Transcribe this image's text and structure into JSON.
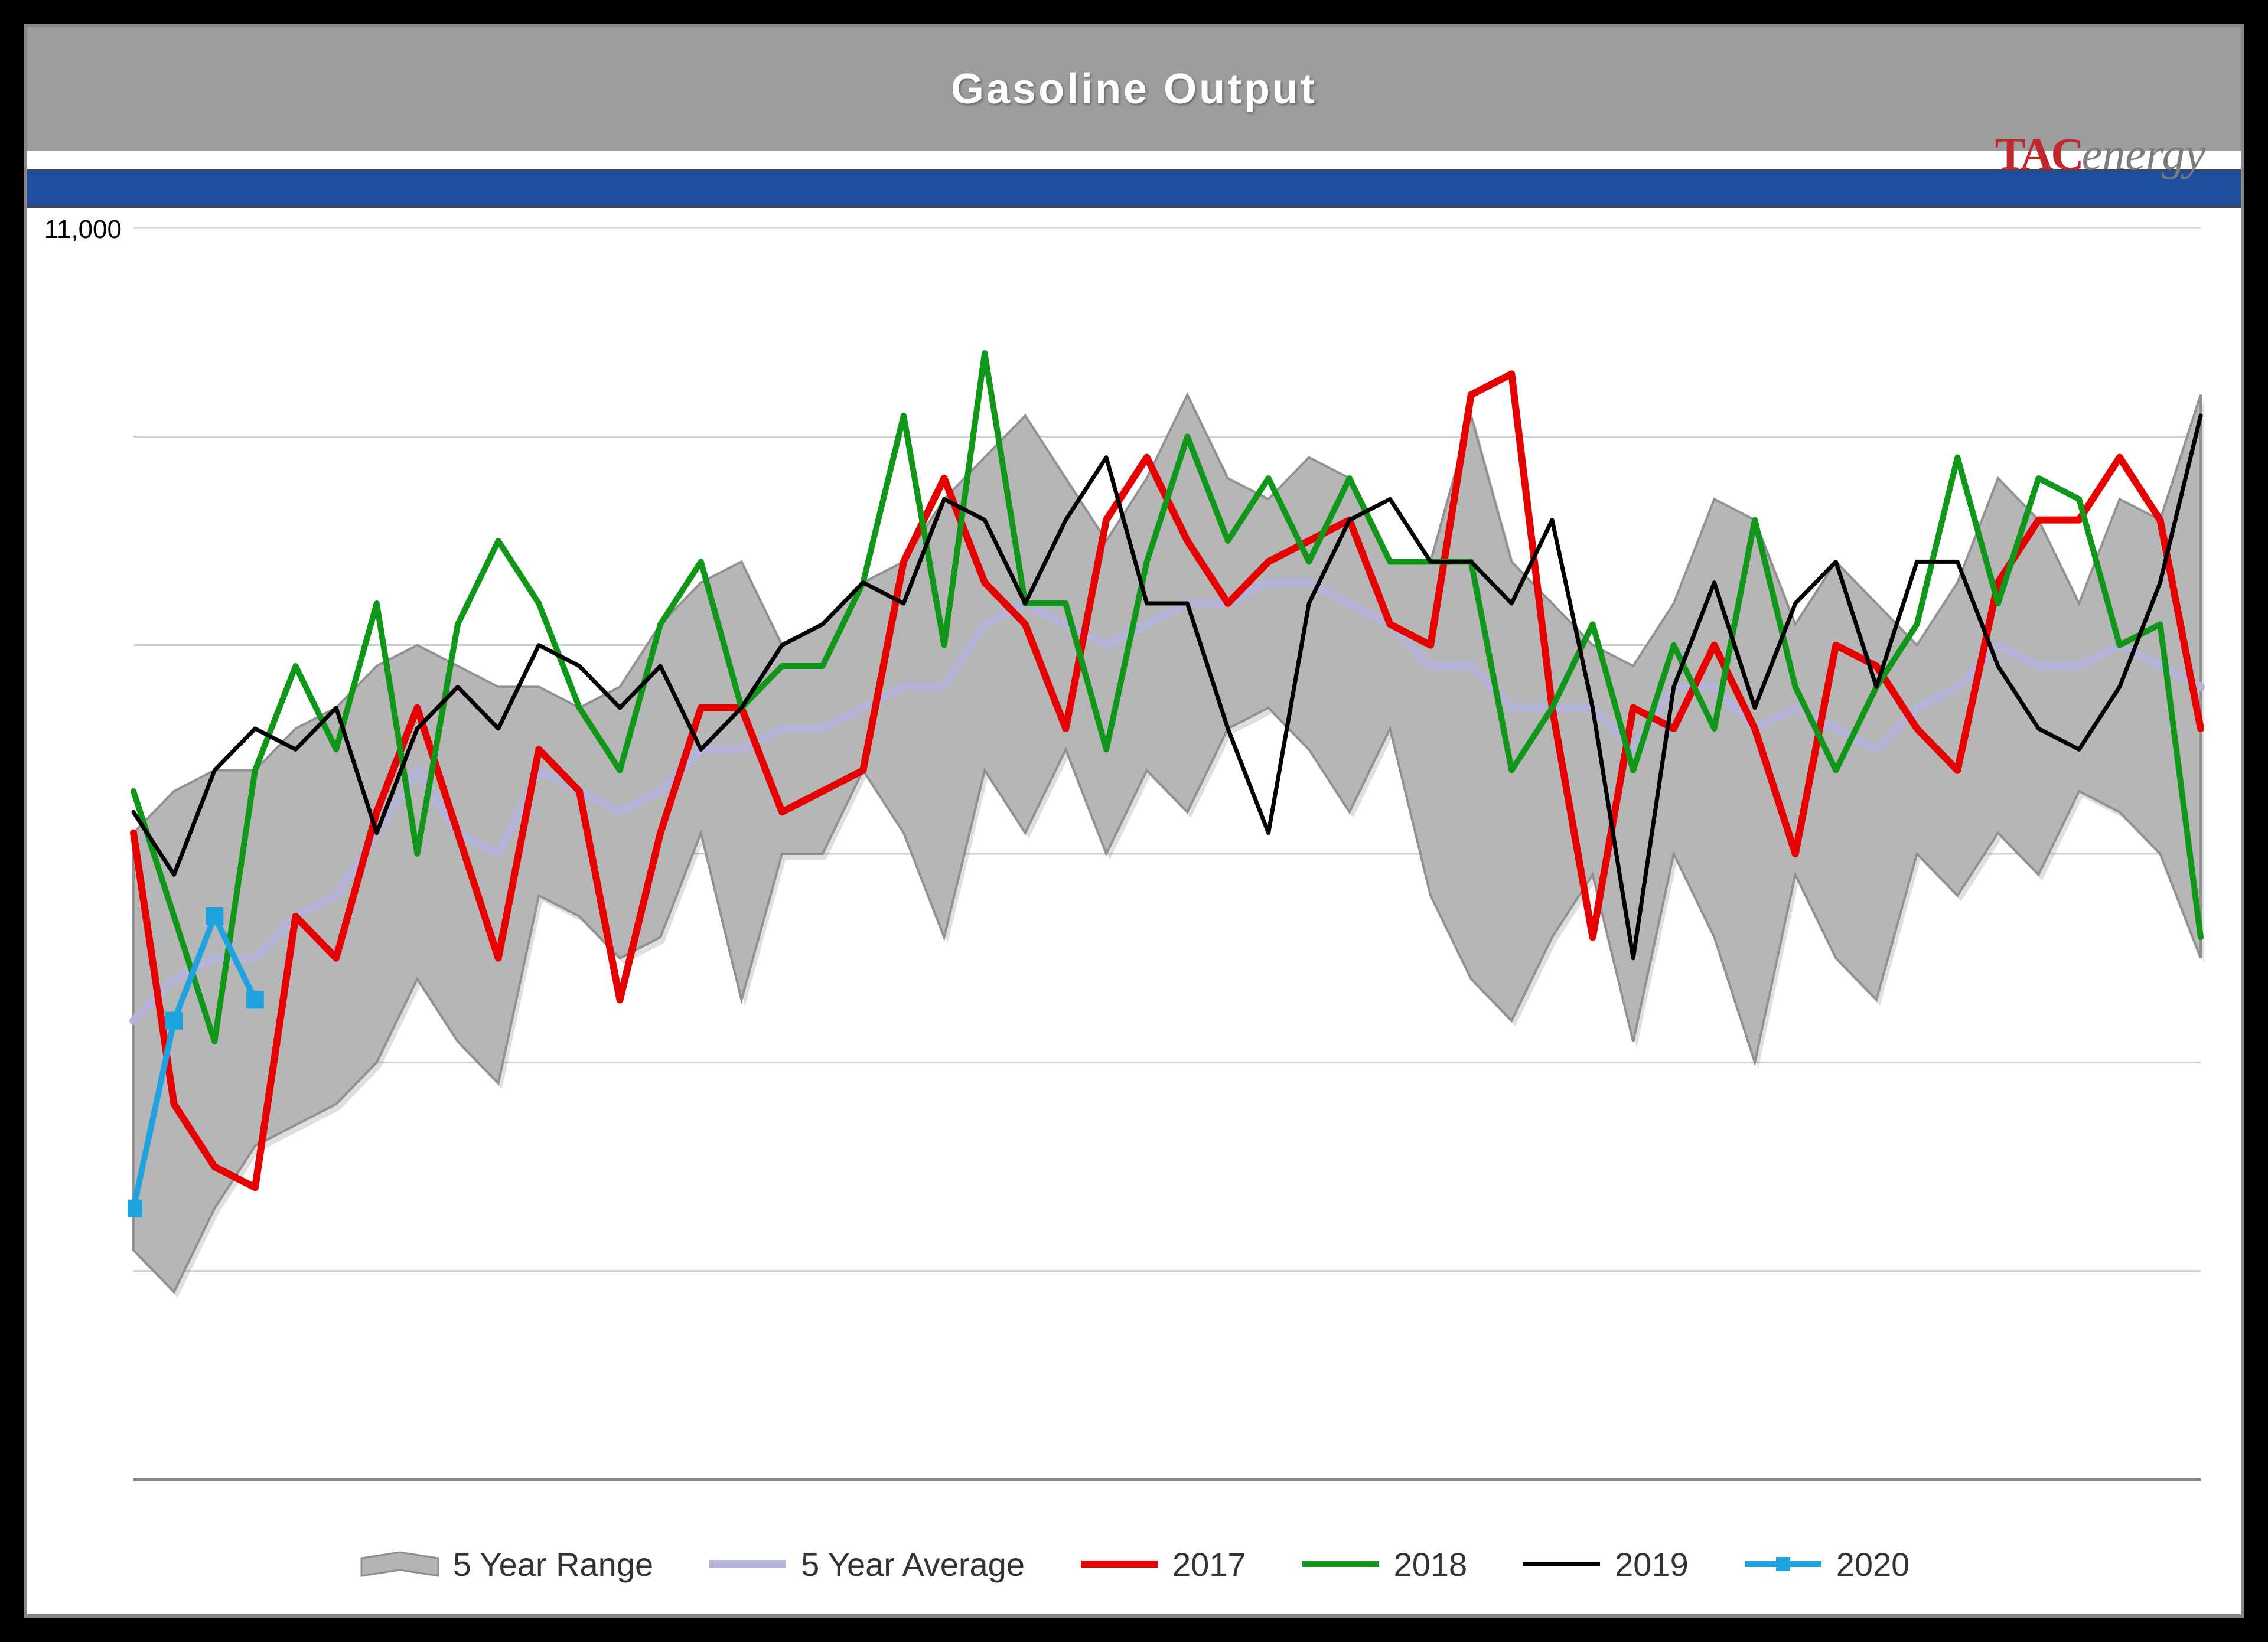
{
  "chart": {
    "type": "line-with-range",
    "title": "Gasoline Output",
    "title_fontsize": 72,
    "title_color": "#ffffff",
    "title_band_color": "#9b9e9d",
    "blue_band_color": "#1f4e9c",
    "background_color": "#ffffff",
    "outer_background": "#000000",
    "grid_color": "#d0d0d0",
    "axis_color": "#888888",
    "y_axis": {
      "min": 8000,
      "max": 11000,
      "tick_step": 500,
      "label_fontsize": 44,
      "top_overflow_label": "11,000"
    },
    "x_axis": {
      "weeks": 52
    },
    "logo": {
      "prefix": "TAC",
      "suffix": "energy",
      "prefix_color": "#c1272d",
      "suffix_color": "#7a7c7b"
    },
    "series": {
      "range_high": [
        9550,
        9650,
        9700,
        9700,
        9800,
        9850,
        9950,
        10000,
        9950,
        9900,
        9900,
        9850,
        9900,
        10050,
        10150,
        10200,
        10000,
        10050,
        10150,
        10200,
        10350,
        10450,
        10550,
        10400,
        10250,
        10400,
        10600,
        10400,
        10350,
        10450,
        10400,
        10200,
        10200,
        10550,
        10200,
        10100,
        10000,
        9950,
        10100,
        10350,
        10300,
        10050,
        10200,
        10100,
        10000,
        10150,
        10400,
        10300,
        10100,
        10350,
        10300,
        10600
      ],
      "range_low": [
        8550,
        8450,
        8650,
        8800,
        8850,
        8900,
        9000,
        9200,
        9050,
        8950,
        9400,
        9350,
        9250,
        9300,
        9550,
        9150,
        9500,
        9500,
        9700,
        9550,
        9300,
        9700,
        9550,
        9750,
        9500,
        9700,
        9600,
        9800,
        9850,
        9750,
        9600,
        9800,
        9400,
        9200,
        9100,
        9300,
        9450,
        9050,
        9500,
        9300,
        9000,
        9450,
        9250,
        9150,
        9500,
        9400,
        9550,
        9450,
        9650,
        9600,
        9500,
        9250
      ],
      "avg": [
        9100,
        9200,
        9250,
        9250,
        9350,
        9400,
        9550,
        9700,
        9550,
        9500,
        9700,
        9650,
        9600,
        9650,
        9750,
        9750,
        9800,
        9800,
        9850,
        9900,
        9900,
        10050,
        10100,
        10050,
        10000,
        10050,
        10100,
        10100,
        10150,
        10150,
        10100,
        10050,
        9950,
        9950,
        9850,
        9850,
        9850,
        9750,
        9900,
        9900,
        9800,
        9850,
        9800,
        9750,
        9850,
        9900,
        10000,
        9950,
        9950,
        10000,
        9950,
        9900
      ],
      "y2017": [
        9550,
        8900,
        8750,
        8700,
        9350,
        9250,
        9600,
        9850,
        9550,
        9250,
        9750,
        9650,
        9150,
        9550,
        9850,
        9850,
        9600,
        9650,
        9700,
        10200,
        10400,
        10150,
        10050,
        9800,
        10300,
        10450,
        10250,
        10100,
        10200,
        10250,
        10300,
        10050,
        10000,
        10600,
        10650,
        9850,
        9300,
        9850,
        9800,
        10000,
        9800,
        9500,
        10000,
        9950,
        9800,
        9700,
        10150,
        10300,
        10300,
        10450,
        10300,
        9800
      ],
      "y2018": [
        9650,
        9350,
        9050,
        9700,
        9950,
        9750,
        10100,
        9500,
        10050,
        10250,
        10100,
        9850,
        9700,
        10050,
        10200,
        9850,
        9950,
        9950,
        10150,
        10550,
        10000,
        10700,
        10100,
        10100,
        9750,
        10200,
        10500,
        10250,
        10400,
        10200,
        10400,
        10200,
        10200,
        10200,
        9700,
        9850,
        10050,
        9700,
        10000,
        9800,
        10300,
        9900,
        9700,
        9900,
        10050,
        10450,
        10100,
        10400,
        10350,
        10000,
        10050,
        9300
      ],
      "y2019": [
        9600,
        9450,
        9700,
        9800,
        9750,
        9850,
        9550,
        9800,
        9900,
        9800,
        10000,
        9950,
        9850,
        9950,
        9750,
        9850,
        10000,
        10050,
        10150,
        10100,
        10350,
        10300,
        10100,
        10300,
        10450,
        10100,
        10100,
        9800,
        9550,
        10100,
        10300,
        10350,
        10200,
        10200,
        10100,
        10300,
        9850,
        9250,
        9900,
        10150,
        9850,
        10100,
        10200,
        9900,
        10200,
        10200,
        9950,
        9800,
        9750,
        9900,
        10150,
        10550
      ],
      "y2020": [
        8650,
        9100,
        9350,
        9150
      ]
    },
    "styles": {
      "range": {
        "fill": "#b3b4b3",
        "opacity": 0.95,
        "stroke": "#8c8d8c",
        "stroke_width": 4
      },
      "avg": {
        "color": "#b4b4d8",
        "width": 14
      },
      "y2017": {
        "color": "#e60000",
        "width": 12
      },
      "y2018": {
        "color": "#109618",
        "width": 10
      },
      "y2019": {
        "color": "#000000",
        "width": 7
      },
      "y2020": {
        "color": "#1fa3e0",
        "width": 10,
        "marker": "square",
        "marker_size": 30
      }
    },
    "legend": [
      {
        "key": "range",
        "label": "5 Year Range"
      },
      {
        "key": "avg",
        "label": "5 Year Average"
      },
      {
        "key": "y2017",
        "label": "2017"
      },
      {
        "key": "y2018",
        "label": "2018"
      },
      {
        "key": "y2019",
        "label": "2019"
      },
      {
        "key": "y2020",
        "label": "2020"
      }
    ]
  }
}
